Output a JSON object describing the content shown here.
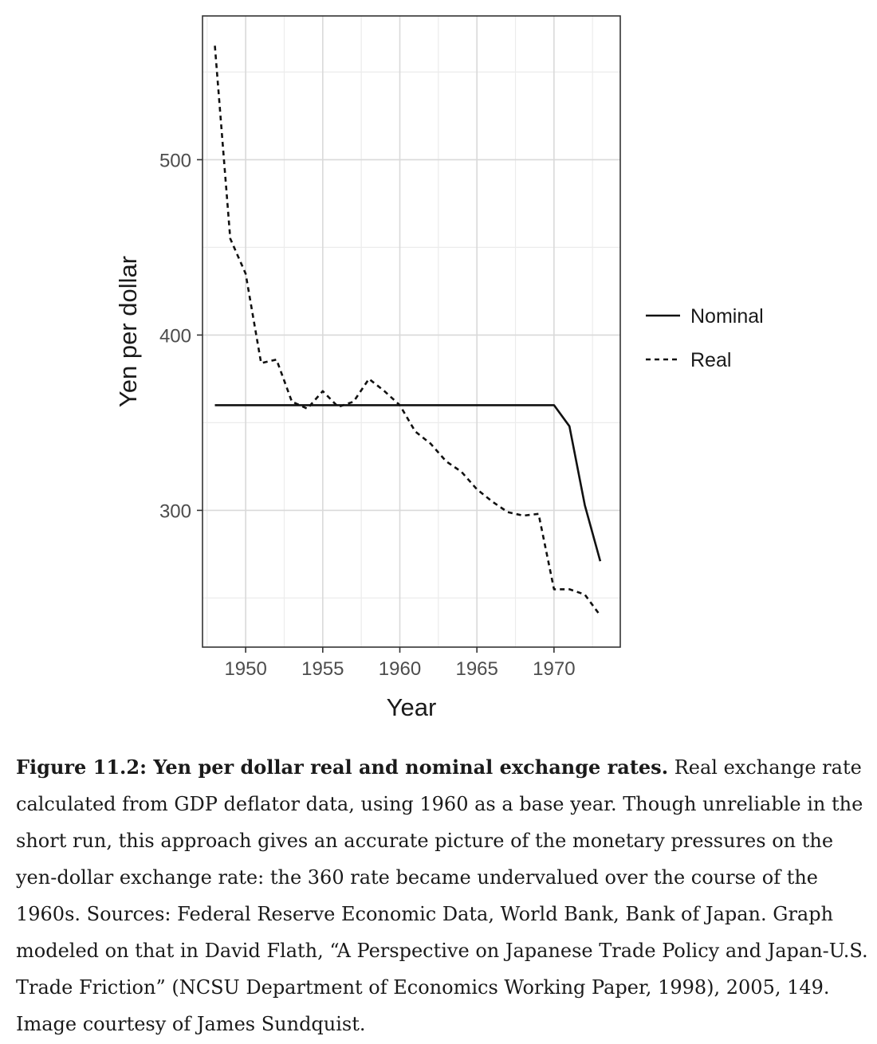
{
  "chart_data": {
    "type": "line",
    "xlabel": "Year",
    "ylabel": "Yen per dollar",
    "xlim": [
      1947.2,
      1974.3
    ],
    "ylim": [
      222,
      582
    ],
    "x_ticks": [
      1950,
      1955,
      1960,
      1965,
      1970
    ],
    "x_minor_ticks": [
      1947.5,
      1952.5,
      1957.5,
      1962.5,
      1967.5,
      1972.5
    ],
    "y_ticks": [
      300,
      400,
      500
    ],
    "y_minor_ticks": [
      250,
      350,
      450,
      550
    ],
    "grid": true,
    "legend_position": "right",
    "x": [
      1948,
      1949,
      1950,
      1951,
      1952,
      1953,
      1954,
      1955,
      1956,
      1957,
      1958,
      1959,
      1960,
      1961,
      1962,
      1963,
      1964,
      1965,
      1966,
      1967,
      1968,
      1969,
      1970,
      1971,
      1972,
      1973
    ],
    "series": [
      {
        "name": "Nominal",
        "line_style": "solid",
        "values": [
          360,
          360,
          360,
          360,
          360,
          360,
          360,
          360,
          360,
          360,
          360,
          360,
          360,
          360,
          360,
          360,
          360,
          360,
          360,
          360,
          360,
          360,
          360,
          348,
          303,
          271
        ]
      },
      {
        "name": "Real",
        "line_style": "dashed",
        "values": [
          565,
          455,
          435,
          384,
          386,
          362,
          358,
          368,
          359,
          362,
          375,
          368,
          360,
          345,
          338,
          328,
          322,
          312,
          305,
          299,
          297,
          298,
          255,
          255,
          252,
          240
        ]
      }
    ]
  },
  "caption": {
    "lead": "Figure 11.2: Yen per dollar real and nominal exchange rates.",
    "body": " Real exchange rate calculated from GDP deflator data, using 1960 as a base year. Though unreliable in the short run, this approach gives an accurate picture of the monetary pressures on the  yen-dollar exchange rate: the 360 rate became undervalued over the course of the 1960s. Sources: Federal Reserve Economic Data, World Bank, Bank of Japan. Graph modeled on that in David Flath, “A Perspective on Japanese Trade Policy and Japan-U.S. Trade Friction” (NCSU Department of Economics Working Paper, 1998), 2005, 149. Image courtesy of James Sundquist."
  }
}
